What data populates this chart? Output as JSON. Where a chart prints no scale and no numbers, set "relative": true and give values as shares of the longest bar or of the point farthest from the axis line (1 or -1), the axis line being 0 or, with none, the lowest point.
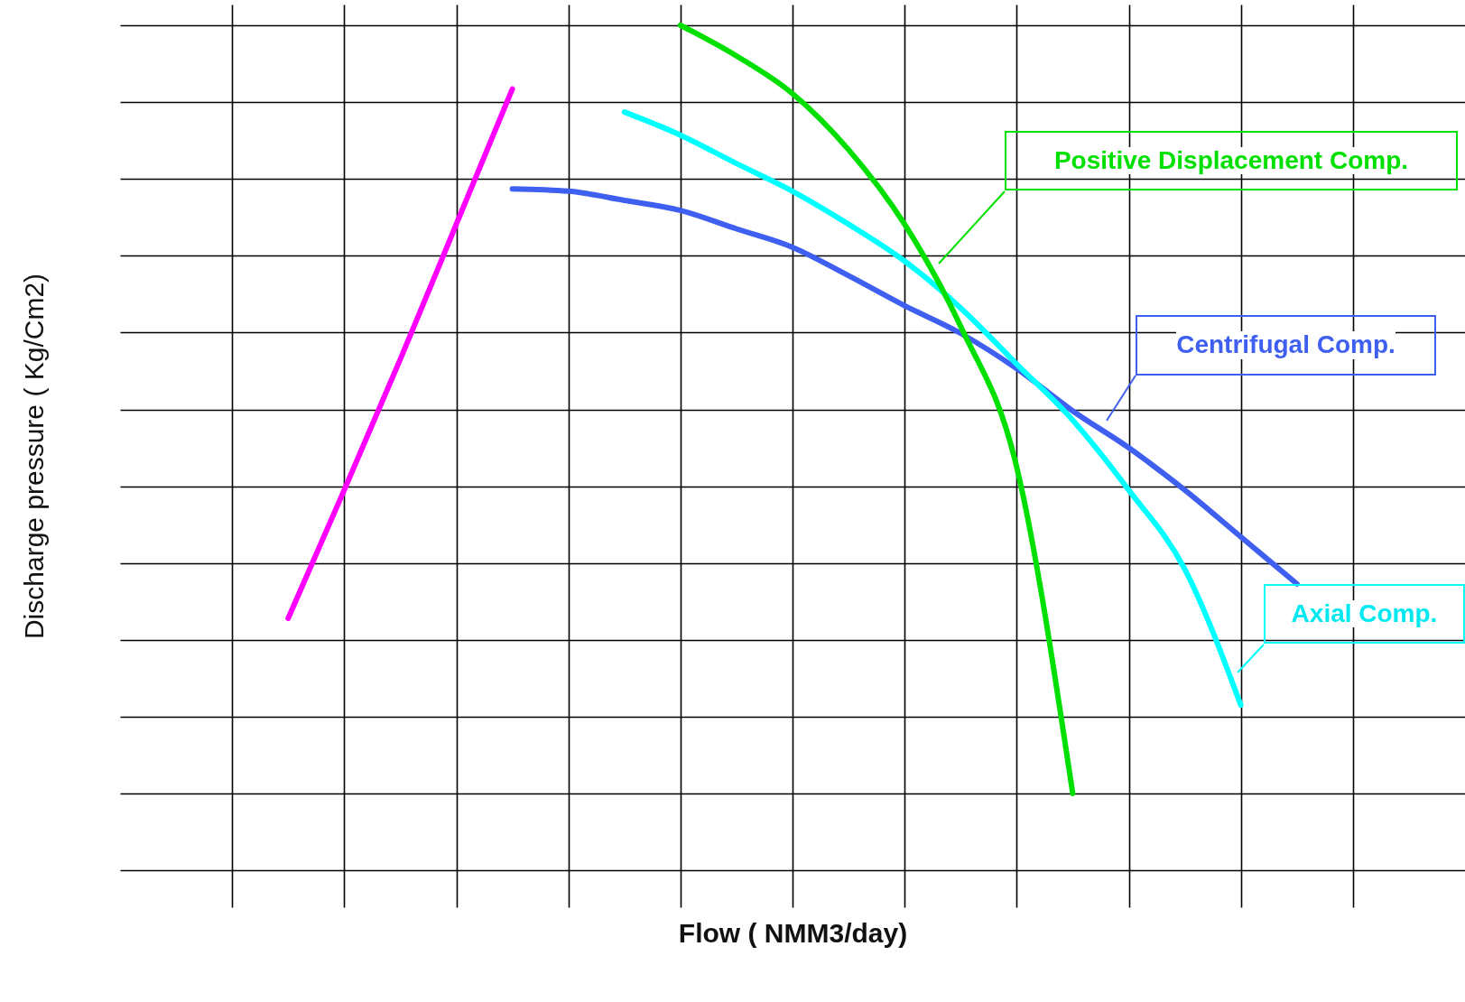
{
  "chart_data": {
    "type": "line",
    "xlabel": "Flow ( NMM3/day)",
    "ylabel": "Discharge pressure  ( Kg/Cm2)",
    "relative": true,
    "grid": true,
    "categories": [
      null,
      null,
      null,
      null,
      null,
      null,
      null,
      null,
      null,
      null,
      null,
      null,
      null,
      null,
      null,
      null,
      null,
      null,
      null,
      null,
      null,
      null,
      null,
      null,
      null
    ],
    "series": [
      {
        "color": "#ff00ff",
        "values": [
          null,
          null,
          null,
          0.228,
          0.395,
          0.565,
          0.741,
          0.917,
          null,
          null,
          null,
          null,
          null,
          null,
          null,
          null,
          null,
          null,
          null,
          null,
          null,
          null,
          null,
          null,
          null
        ]
      },
      {
        "name": "Centrifugal Comp.",
        "color": "#3f5ff0",
        "values": [
          null,
          null,
          null,
          null,
          null,
          null,
          null,
          0.787,
          0.784,
          0.772,
          0.759,
          0.735,
          0.711,
          0.674,
          0.635,
          0.599,
          0.553,
          0.498,
          0.45,
          0.395,
          0.334,
          0.273,
          null,
          null,
          null
        ]
      },
      {
        "name": "Axial Comp.",
        "color": "#00ffff",
        "values": [
          null,
          null,
          null,
          null,
          null,
          null,
          null,
          null,
          null,
          0.887,
          0.857,
          0.82,
          0.784,
          0.741,
          0.693,
          0.632,
          0.559,
          0.486,
          0.395,
          0.292,
          0.115,
          null,
          null,
          null,
          null
        ]
      },
      {
        "name": "Positive Displacement Comp.",
        "color": "#00e000",
        "values": [
          null,
          null,
          null,
          null,
          null,
          null,
          null,
          null,
          null,
          null,
          1,
          0.96,
          0.911,
          0.838,
          0.741,
          0.608,
          0.425,
          0,
          null,
          null,
          null,
          null,
          null,
          null,
          null
        ]
      }
    ]
  }
}
